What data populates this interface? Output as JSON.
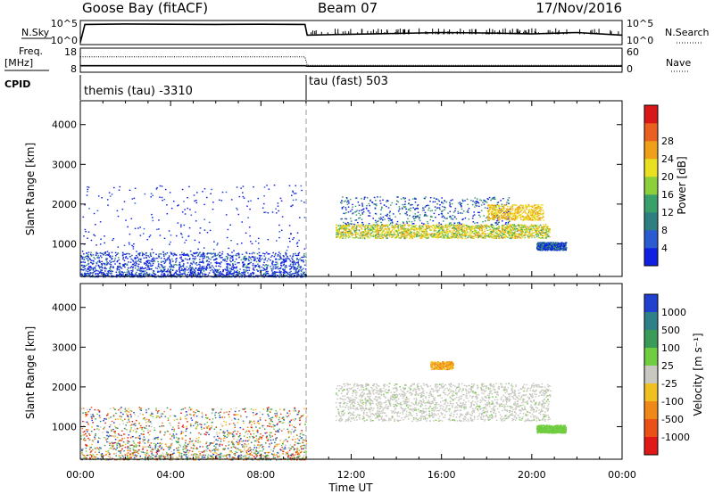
{
  "header": {
    "station": "Goose Bay (fitACF)",
    "beam": "Beam 07",
    "date": "17/Nov/2016"
  },
  "noise_panel": {
    "left_label": "N.Sky",
    "right_label": "N.Search",
    "left_ticks": [
      "10^5",
      "10^0"
    ],
    "right_ticks": [
      "10^5",
      "10^0"
    ]
  },
  "freq_panel": {
    "left_label_top": "Freq.",
    "left_label_unit": "[MHz]",
    "right_label": "Nave",
    "left_ticks": [
      "18",
      "8"
    ],
    "right_ticks": [
      "60",
      "0"
    ]
  },
  "cpid": {
    "label": "CPID",
    "segments": [
      {
        "start_hour": 0,
        "text": "themis (tau) -3310"
      },
      {
        "start_hour": 10,
        "text": "tau (fast) 503"
      }
    ]
  },
  "x_axis": {
    "label": "Time UT",
    "ticks": [
      "00:00",
      "04:00",
      "08:00",
      "12:00",
      "16:00",
      "20:00",
      "00:00"
    ],
    "range_hours": [
      0,
      24
    ]
  },
  "slant_axis": {
    "label": "Slant Range [km]",
    "ticks": [
      "1000",
      "2000",
      "3000",
      "4000"
    ],
    "range_km": [
      180,
      4600
    ]
  },
  "power_scale": {
    "label": "Power [dB]",
    "ticks": [
      "4",
      "8",
      "12",
      "16",
      "20",
      "24",
      "28"
    ],
    "colors": [
      "#1020e0",
      "#2a5bd0",
      "#2f7f80",
      "#3aa06a",
      "#8ccf3a",
      "#e8e020",
      "#f0a018",
      "#ea6020",
      "#d81818"
    ]
  },
  "velocity_scale": {
    "label": "Velocity [m s⁻¹]",
    "ticks": [
      "1000",
      "500",
      "100",
      "25",
      "-25",
      "-100",
      "-500",
      "-1000"
    ],
    "colors": [
      "#2040d0",
      "#30808a",
      "#3a9a58",
      "#70cc40",
      "#c8c8c0",
      "#f0c020",
      "#f08818",
      "#ea5018",
      "#e01818"
    ]
  },
  "chart_data": [
    {
      "type": "line",
      "title": "N.Sky / N.Search",
      "x_hours": [
        0,
        0.2,
        2,
        4,
        6,
        8,
        9.95,
        10.05,
        12,
        14,
        16,
        18,
        20,
        22,
        24
      ],
      "series": [
        {
          "name": "N.Sky",
          "log10_values": [
            0.3,
            4.5,
            4.6,
            4.55,
            4.5,
            4.55,
            4.5,
            2.0,
            2.2,
            2.4,
            2.6,
            2.5,
            2.3,
            2.6,
            2.0
          ]
        }
      ],
      "ylim_log10": [
        0,
        5
      ]
    },
    {
      "type": "line",
      "title": "Freq. / Nave",
      "x_hours": [
        0,
        9.95,
        10.05,
        24
      ],
      "series": [
        {
          "name": "Freq.",
          "values": [
            10.8,
            10.8,
            10.6,
            10.6
          ]
        },
        {
          "name": "Nave",
          "values": [
            40,
            40,
            18,
            18
          ]
        }
      ],
      "ylim_freq": [
        8,
        18
      ],
      "ylim_nave": [
        0,
        60
      ]
    },
    {
      "type": "heatmap",
      "title": "Power [dB]",
      "x_unit": "hours UT",
      "y_unit": "slant range km",
      "regions": [
        {
          "x_range": [
            0,
            10
          ],
          "y_range": [
            180,
            800
          ],
          "value_db": 6,
          "density": "high"
        },
        {
          "x_range": [
            0,
            10
          ],
          "y_range": [
            800,
            2500
          ],
          "value_db": 4,
          "density": "sparse"
        },
        {
          "x_range": [
            11.3,
            20.8
          ],
          "y_range": [
            1150,
            1500
          ],
          "value_db": 18,
          "density": "high"
        },
        {
          "x_range": [
            11.5,
            19.0
          ],
          "y_range": [
            1500,
            2200
          ],
          "value_db": 8,
          "density": "medium"
        },
        {
          "x_range": [
            18.0,
            20.5
          ],
          "y_range": [
            1600,
            2000
          ],
          "value_db": 20,
          "density": "medium"
        },
        {
          "x_range": [
            20.2,
            21.5
          ],
          "y_range": [
            850,
            1050
          ],
          "value_db": 10,
          "density": "medium"
        }
      ],
      "ylim": [
        180,
        4600
      ],
      "xlim": [
        0,
        24
      ]
    },
    {
      "type": "heatmap",
      "title": "Velocity [m s⁻¹]",
      "x_unit": "hours UT",
      "y_unit": "slant range km",
      "regions": [
        {
          "x_range": [
            0,
            10
          ],
          "y_range": [
            180,
            1500
          ],
          "value": "mixed",
          "density": "high"
        },
        {
          "x_range": [
            11.3,
            20.8
          ],
          "y_range": [
            1150,
            2100
          ],
          "value": 0,
          "density": "high"
        },
        {
          "x_range": [
            20.2,
            21.5
          ],
          "y_range": [
            850,
            1050
          ],
          "value": 150,
          "density": "medium"
        },
        {
          "x_range": [
            15.5,
            16.5
          ],
          "y_range": [
            2450,
            2650
          ],
          "value": -300,
          "density": "sparse"
        }
      ],
      "ylim": [
        180,
        4600
      ],
      "xlim": [
        0,
        24
      ]
    }
  ]
}
